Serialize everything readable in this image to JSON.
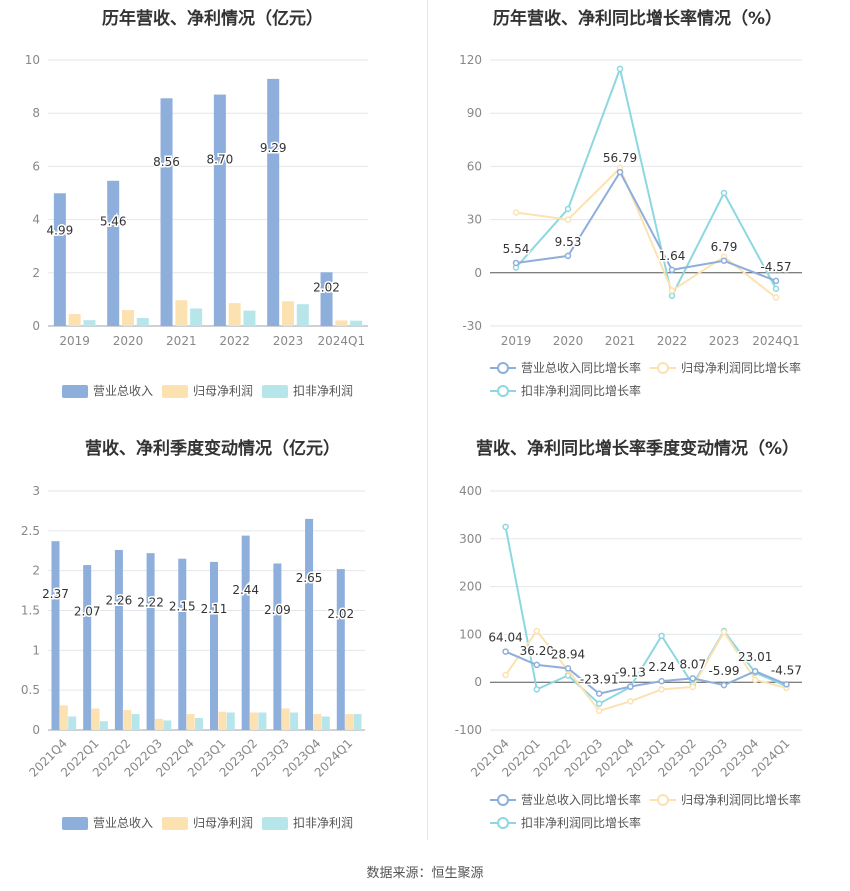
{
  "colors": {
    "revenue": "#8eaedc",
    "parent_profit": "#fde2b1",
    "deducted_profit": "#b7e6ea",
    "revenue_line": "#8eaedc",
    "parent_line": "#fde2b1",
    "deducted_line": "#8dd8e0",
    "grid": "#e3e6ec",
    "axis_text": "#888888"
  },
  "source": {
    "label": "数据来源：",
    "value": "恒生聚源"
  },
  "chart_data": [
    {
      "id": "annual_amounts",
      "type": "bar",
      "title": "历年营收、净利情况（亿元）",
      "categories": [
        "2019",
        "2020",
        "2021",
        "2022",
        "2023",
        "2024Q1"
      ],
      "ylim": [
        0,
        10
      ],
      "yticks": [
        0,
        2,
        4,
        6,
        8,
        10
      ],
      "grid": true,
      "legend_position": "bottom",
      "series": [
        {
          "name": "营业总收入",
          "values": [
            4.99,
            5.46,
            8.56,
            8.7,
            9.29,
            2.02
          ],
          "labels": [
            "4.99",
            "5.46",
            "8.56",
            "8.70",
            "9.29",
            "2.02"
          ]
        },
        {
          "name": "归母净利润",
          "values": [
            0.45,
            0.6,
            0.97,
            0.86,
            0.93,
            0.21
          ]
        },
        {
          "name": "扣非净利润",
          "values": [
            0.22,
            0.3,
            0.66,
            0.58,
            0.82,
            0.2
          ]
        }
      ]
    },
    {
      "id": "annual_growth",
      "type": "line",
      "title": "历年营收、净利同比增长率情况（%）",
      "categories": [
        "2019",
        "2020",
        "2021",
        "2022",
        "2023",
        "2024Q1"
      ],
      "ylim": [
        -30,
        120
      ],
      "yticks": [
        -30,
        0,
        30,
        60,
        90,
        120
      ],
      "grid": true,
      "legend_position": "bottom",
      "series": [
        {
          "name": "营业总收入同比增长率",
          "values": [
            5.54,
            9.53,
            56.79,
            1.64,
            6.79,
            -4.57
          ],
          "labels": [
            "5.54",
            "9.53",
            "56.79",
            "1.64",
            "6.79",
            "-4.57"
          ]
        },
        {
          "name": "归母净利润同比增长率",
          "values": [
            34,
            30,
            59,
            -10,
            9,
            -14
          ]
        },
        {
          "name": "扣非净利润同比增长率",
          "values": [
            3,
            36,
            115,
            -13,
            45,
            -9
          ]
        }
      ]
    },
    {
      "id": "quarterly_amounts",
      "type": "bar",
      "title": "营收、净利季度变动情况（亿元）",
      "categories": [
        "2021Q4",
        "2022Q1",
        "2022Q2",
        "2022Q3",
        "2022Q4",
        "2023Q1",
        "2023Q2",
        "2023Q3",
        "2023Q4",
        "2024Q1"
      ],
      "ylim": [
        0,
        3
      ],
      "yticks": [
        0,
        0.5,
        1,
        1.5,
        2,
        2.5,
        3
      ],
      "grid": true,
      "legend_position": "bottom",
      "series": [
        {
          "name": "营业总收入",
          "values": [
            2.37,
            2.07,
            2.26,
            2.22,
            2.15,
            2.11,
            2.44,
            2.09,
            2.65,
            2.02
          ],
          "labels": [
            "2.37",
            "2.07",
            "2.26",
            "2.22",
            "2.15",
            "2.11",
            "2.44",
            "2.09",
            "2.65",
            "2.02"
          ]
        },
        {
          "name": "归母净利润",
          "values": [
            0.31,
            0.27,
            0.25,
            0.14,
            0.2,
            0.23,
            0.22,
            0.27,
            0.2,
            0.2
          ]
        },
        {
          "name": "扣非净利润",
          "values": [
            0.17,
            0.11,
            0.2,
            0.12,
            0.15,
            0.22,
            0.22,
            0.22,
            0.17,
            0.2
          ]
        }
      ]
    },
    {
      "id": "quarterly_growth",
      "type": "line",
      "title": "营收、净利同比增长率季度变动情况（%）",
      "categories": [
        "2021Q4",
        "2022Q1",
        "2022Q2",
        "2022Q3",
        "2022Q4",
        "2023Q1",
        "2023Q2",
        "2023Q3",
        "2023Q4",
        "2024Q1"
      ],
      "ylim": [
        -100,
        400
      ],
      "yticks": [
        -100,
        0,
        100,
        200,
        300,
        400
      ],
      "grid": true,
      "legend_position": "bottom",
      "series": [
        {
          "name": "营业总收入同比增长率",
          "values": [
            64.04,
            36.2,
            28.94,
            -23.91,
            -9.13,
            2.24,
            8.07,
            -5.99,
            23.01,
            -4.57
          ],
          "labels": [
            "64.04",
            "36.20",
            "28.94",
            "-23.91",
            "-9.13",
            "2.24",
            "8.07",
            "-5.99",
            "23.01",
            "-4.57"
          ]
        },
        {
          "name": "归母净利润同比增长率",
          "values": [
            15,
            107,
            25,
            -60,
            -40,
            -15,
            -10,
            105,
            5,
            -12
          ]
        },
        {
          "name": "扣非净利润同比增长率",
          "values": [
            325,
            -15,
            14,
            -45,
            -10,
            97,
            -5,
            107,
            20,
            -8
          ]
        }
      ]
    }
  ]
}
